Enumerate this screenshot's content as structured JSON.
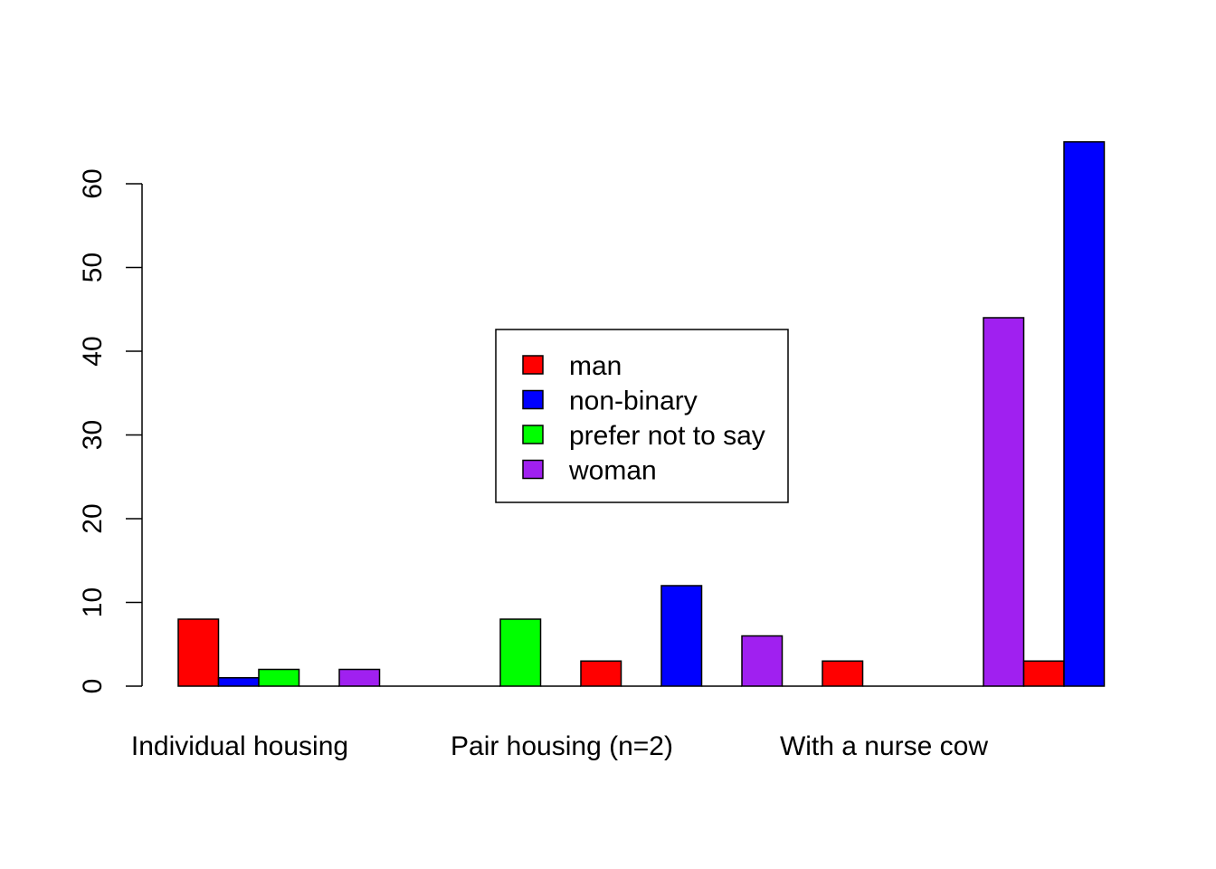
{
  "chart_data": {
    "type": "bar",
    "title": "",
    "xlabel": "",
    "ylabel": "",
    "ylim": [
      0,
      65
    ],
    "yticks": [
      0,
      10,
      20,
      30,
      40,
      50,
      60
    ],
    "grid": false,
    "legend_position": "center",
    "categories": [
      "Individual housing",
      "Pair housing (n=2)",
      "With a nurse cow"
    ],
    "legend": [
      {
        "label": "man",
        "color": "#FF0000"
      },
      {
        "label": "non-binary",
        "color": "#0000FF"
      },
      {
        "label": "prefer not to say",
        "color": "#00FF00"
      },
      {
        "label": "woman",
        "color": "#A020F0"
      }
    ],
    "bars": [
      {
        "value": 8,
        "color": "#FF0000"
      },
      {
        "value": 1,
        "color": "#0000FF"
      },
      {
        "value": 2,
        "color": "#00FF00"
      },
      {
        "value": 0,
        "color": "#FF0000"
      },
      {
        "value": 2,
        "color": "#A020F0"
      },
      {
        "value": 0,
        "color": "#FF0000"
      },
      {
        "value": 0,
        "color": "#0000FF"
      },
      {
        "value": 0,
        "color": "#00FF00"
      },
      {
        "value": 8,
        "color": "#00FF00"
      },
      {
        "value": 0,
        "color": "#A020F0"
      },
      {
        "value": 3,
        "color": "#FF0000"
      },
      {
        "value": 0,
        "color": "#0000FF"
      },
      {
        "value": 12,
        "color": "#0000FF"
      },
      {
        "value": 0,
        "color": "#00FF00"
      },
      {
        "value": 6,
        "color": "#A020F0"
      },
      {
        "value": 0,
        "color": "#FF0000"
      },
      {
        "value": 3,
        "color": "#FF0000"
      },
      {
        "value": 0,
        "color": "#0000FF"
      },
      {
        "value": 0,
        "color": "#00FF00"
      },
      {
        "value": 0,
        "color": "#A020F0"
      },
      {
        "value": 44,
        "color": "#A020F0"
      },
      {
        "value": 3,
        "color": "#FF0000"
      },
      {
        "value": 65,
        "color": "#0000FF"
      }
    ]
  }
}
